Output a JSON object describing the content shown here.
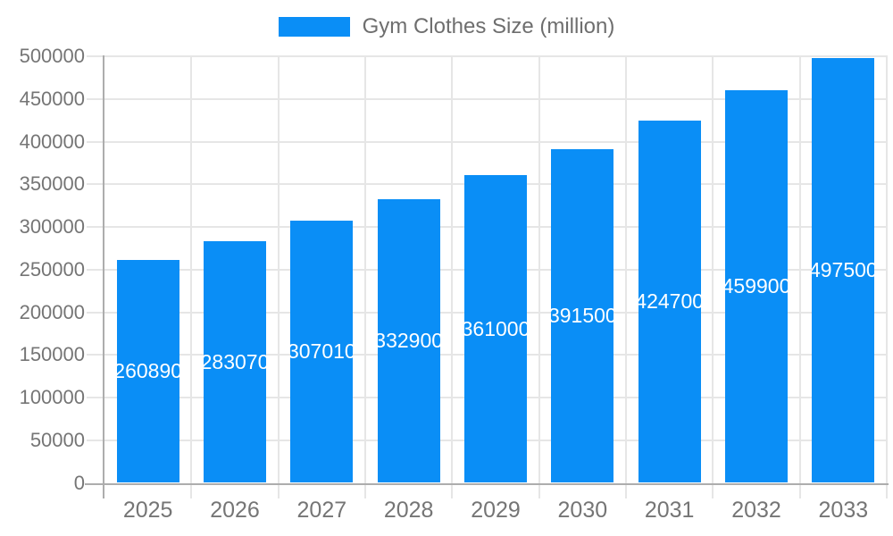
{
  "legend": {
    "label": "Gym Clothes Size (million)"
  },
  "chart_data": {
    "type": "bar",
    "title": "",
    "series_name": "Gym Clothes Size (million)",
    "categories": [
      "2025",
      "2026",
      "2027",
      "2028",
      "2029",
      "2030",
      "2031",
      "2032",
      "2033"
    ],
    "values": [
      260890,
      283070,
      307010,
      332900,
      361000,
      391500,
      424700,
      459900,
      497500
    ],
    "bar_labels": [
      "260890",
      "283070",
      "307010",
      "332900",
      "361000",
      "391500",
      "424700",
      "459900",
      "497500"
    ],
    "xlabel": "",
    "ylabel": "",
    "ylim": [
      0,
      500000
    ],
    "ytick_step": 50000,
    "yticks": [
      "0",
      "50000",
      "100000",
      "150000",
      "200000",
      "250000",
      "300000",
      "350000",
      "400000",
      "450000",
      "500000"
    ],
    "grid": true,
    "legend_position": "top",
    "colors": {
      "bar": "#0a8ef6",
      "bar_label": "#ffffff",
      "gridline": "#e6e6e6",
      "axis_line": "#adadad",
      "tick_label": "#757575",
      "legend_text": "#6e6e6e",
      "background": "#ffffff"
    }
  }
}
